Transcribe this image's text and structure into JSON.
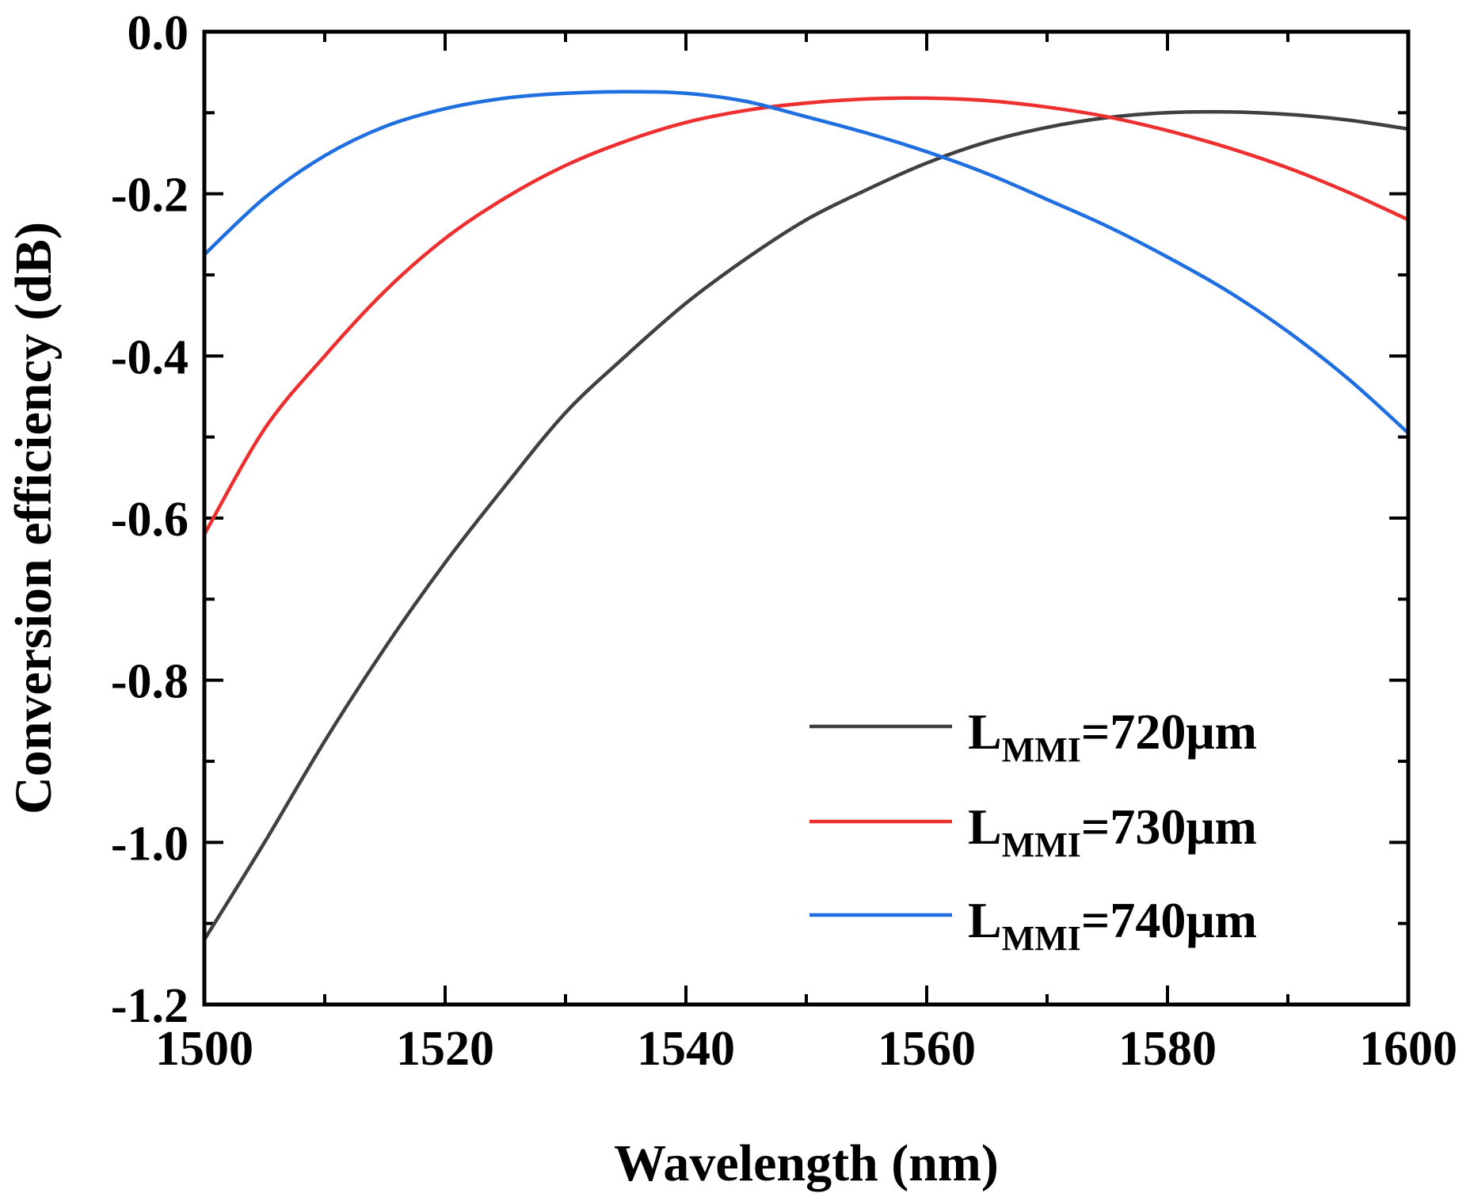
{
  "chart_data": {
    "type": "line",
    "title": "",
    "xlabel": "Wavelength (nm)",
    "ylabel": "Conversion efficiency (dB)",
    "xlim": [
      1500,
      1600
    ],
    "ylim": [
      -1.2,
      0.0
    ],
    "xticks": [
      1500,
      1520,
      1540,
      1560,
      1580,
      1600
    ],
    "xtick_labels": [
      "1500",
      "1520",
      "1540",
      "1560",
      "1580",
      "1600"
    ],
    "yticks": [
      0.0,
      -0.2,
      -0.4,
      -0.6,
      -0.8,
      -1.0,
      -1.2
    ],
    "ytick_labels": [
      "0.0",
      "-0.2",
      "-0.4",
      "-0.6",
      "-0.8",
      "-1.0",
      "-1.2"
    ],
    "x_minor_step": 10,
    "y_minor_step": 0.1,
    "grid": false,
    "legend_position": "bottom-right",
    "series": [
      {
        "name": "LMMI=720μm",
        "label_main": "L",
        "label_sub": "MMI",
        "label_rest": "=720μm",
        "color": "#404040",
        "x": [
          1500,
          1505,
          1510,
          1515,
          1520,
          1525,
          1530,
          1535,
          1540,
          1545,
          1550,
          1555,
          1560,
          1565,
          1570,
          1575,
          1580,
          1585,
          1590,
          1595,
          1600
        ],
        "y": [
          -1.12,
          -1.0,
          -0.875,
          -0.76,
          -0.655,
          -0.56,
          -0.47,
          -0.4,
          -0.335,
          -0.28,
          -0.232,
          -0.195,
          -0.162,
          -0.136,
          -0.118,
          -0.106,
          -0.1,
          -0.099,
          -0.102,
          -0.109,
          -0.12
        ]
      },
      {
        "name": "LMMI=730μm",
        "label_main": "L",
        "label_sub": "MMI",
        "label_rest": "=730μm",
        "color": "#ee2f2f",
        "x": [
          1500,
          1505,
          1510,
          1515,
          1520,
          1525,
          1530,
          1535,
          1540,
          1545,
          1550,
          1555,
          1560,
          1565,
          1570,
          1575,
          1580,
          1585,
          1590,
          1595,
          1600
        ],
        "y": [
          -0.62,
          -0.49,
          -0.4,
          -0.32,
          -0.255,
          -0.205,
          -0.165,
          -0.135,
          -0.112,
          -0.097,
          -0.088,
          -0.083,
          -0.082,
          -0.085,
          -0.093,
          -0.105,
          -0.122,
          -0.143,
          -0.168,
          -0.198,
          -0.232
        ]
      },
      {
        "name": "LMMI=740μm",
        "label_main": "L",
        "label_sub": "MMI",
        "label_rest": "=740μm",
        "color": "#1f6fe0",
        "x": [
          1500,
          1505,
          1510,
          1515,
          1520,
          1525,
          1530,
          1535,
          1540,
          1545,
          1550,
          1555,
          1560,
          1565,
          1570,
          1575,
          1580,
          1585,
          1590,
          1595,
          1600
        ],
        "y": [
          -0.275,
          -0.205,
          -0.153,
          -0.117,
          -0.095,
          -0.082,
          -0.076,
          -0.074,
          -0.076,
          -0.086,
          -0.105,
          -0.125,
          -0.148,
          -0.175,
          -0.207,
          -0.24,
          -0.278,
          -0.32,
          -0.37,
          -0.428,
          -0.495
        ]
      }
    ]
  }
}
